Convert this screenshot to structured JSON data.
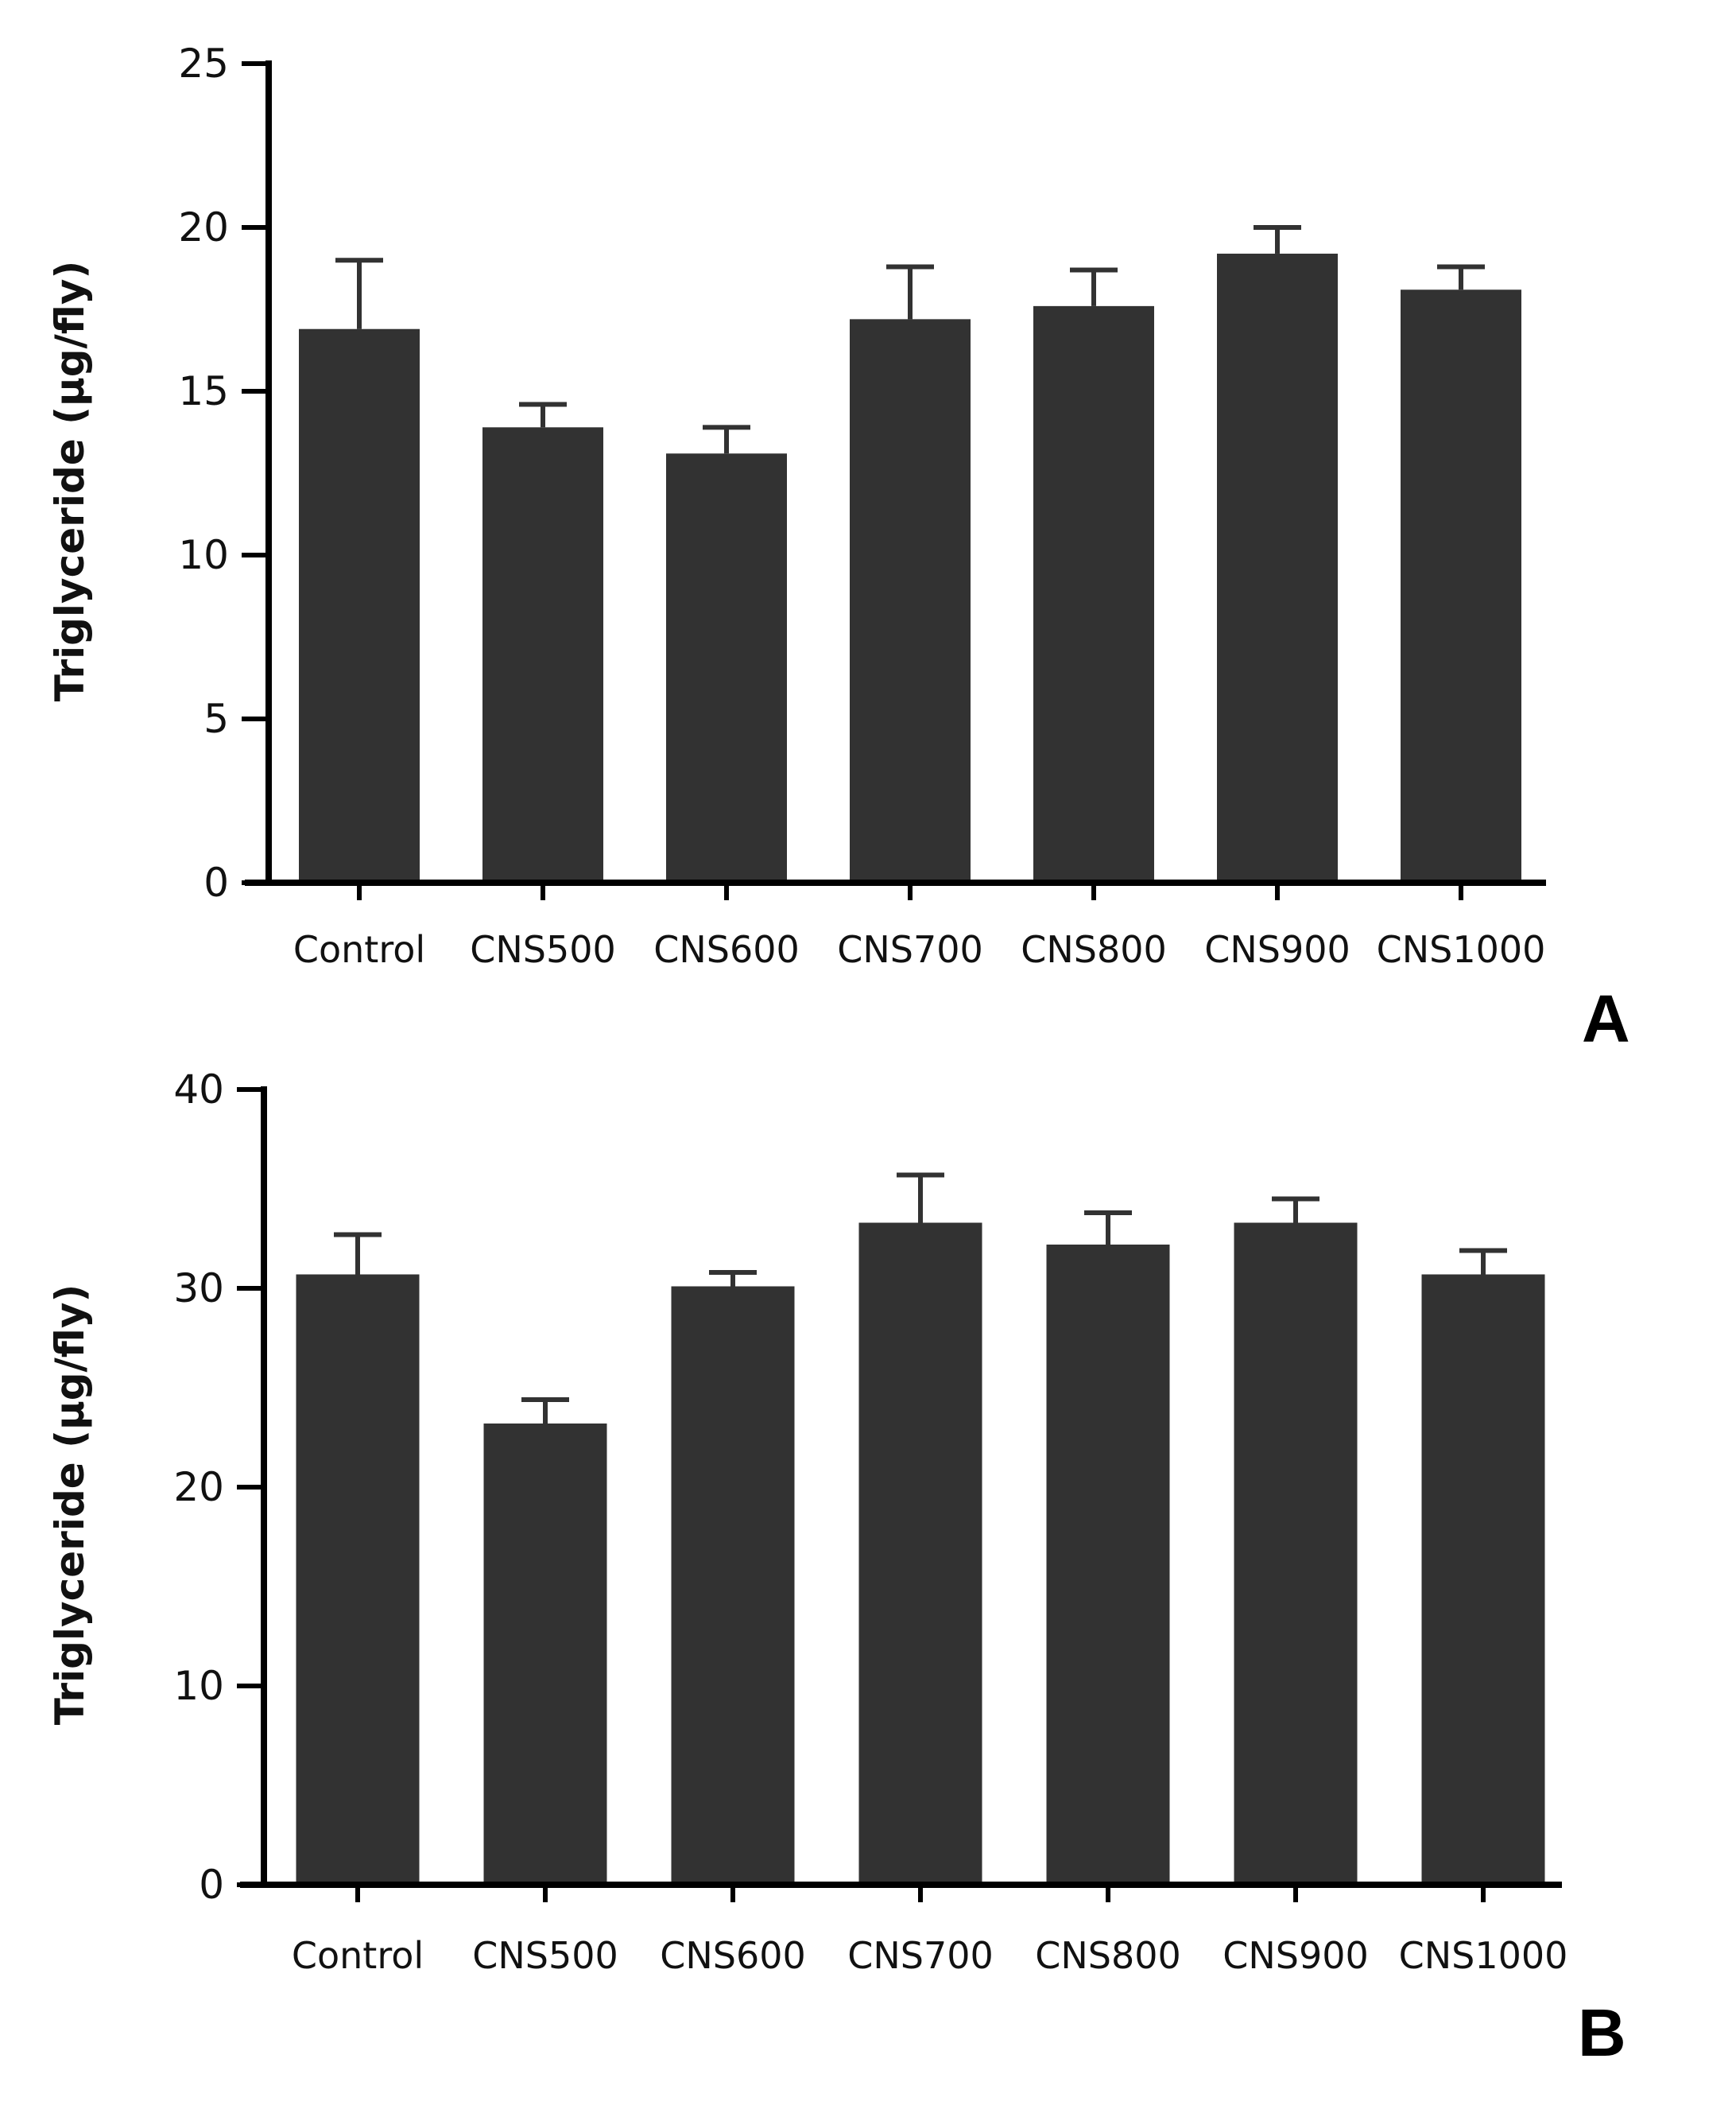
{
  "chart_data": [
    {
      "type": "bar",
      "panel_label": "A",
      "title": "",
      "xlabel": "",
      "ylabel": "Triglyceride (µg/fly)",
      "ylim": [
        0,
        25
      ],
      "yticks": [
        0,
        5,
        10,
        15,
        20,
        25
      ],
      "categories": [
        "Control",
        "CNS500",
        "CNS600",
        "CNS700",
        "CNS800",
        "CNS900",
        "CNS1000"
      ],
      "values": [
        16.9,
        13.9,
        13.1,
        17.2,
        17.6,
        19.2,
        18.1
      ],
      "errors": [
        2.1,
        0.7,
        0.8,
        1.6,
        1.1,
        0.8,
        0.7
      ],
      "bar_color": "#323232"
    },
    {
      "type": "bar",
      "panel_label": "B",
      "title": "",
      "xlabel": "",
      "ylabel": "Triglyceride (µg/fly)",
      "ylim": [
        0,
        40
      ],
      "yticks": [
        0,
        10,
        20,
        30,
        40
      ],
      "categories": [
        "Control",
        "CNS500",
        "CNS600",
        "CNS700",
        "CNS800",
        "CNS900",
        "CNS1000"
      ],
      "values": [
        30.7,
        23.2,
        30.1,
        33.3,
        32.2,
        33.3,
        30.7
      ],
      "errors": [
        2.0,
        1.2,
        0.7,
        2.4,
        1.6,
        1.2,
        1.2
      ],
      "bar_color": "#323232"
    }
  ]
}
